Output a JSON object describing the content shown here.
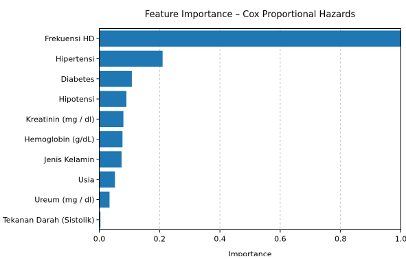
{
  "chart_data": {
    "type": "bar",
    "orientation": "horizontal",
    "title": "Feature Importance – Cox Proportional Hazards",
    "xlabel": "Importance",
    "ylabel": "",
    "xlim": [
      0,
      1.0
    ],
    "xticks": [
      "0.0",
      "0.2",
      "0.4",
      "0.6",
      "0.8",
      "1.0"
    ],
    "grid": "x-dashed",
    "bar_color": "#1f77b4",
    "categories": [
      "Frekuensi HD",
      "Hipertensi",
      "Diabetes",
      "Hipotensi",
      "Kreatinin (mg / dl)",
      "Hemoglobin (g/dL)",
      "Jenis Kelamin",
      "Usia",
      "Ureum (mg / dl)",
      "Tekanan Darah (Sistolik)"
    ],
    "values": [
      1.0,
      0.21,
      0.108,
      0.09,
      0.08,
      0.077,
      0.074,
      0.052,
      0.034,
      0.004
    ]
  }
}
